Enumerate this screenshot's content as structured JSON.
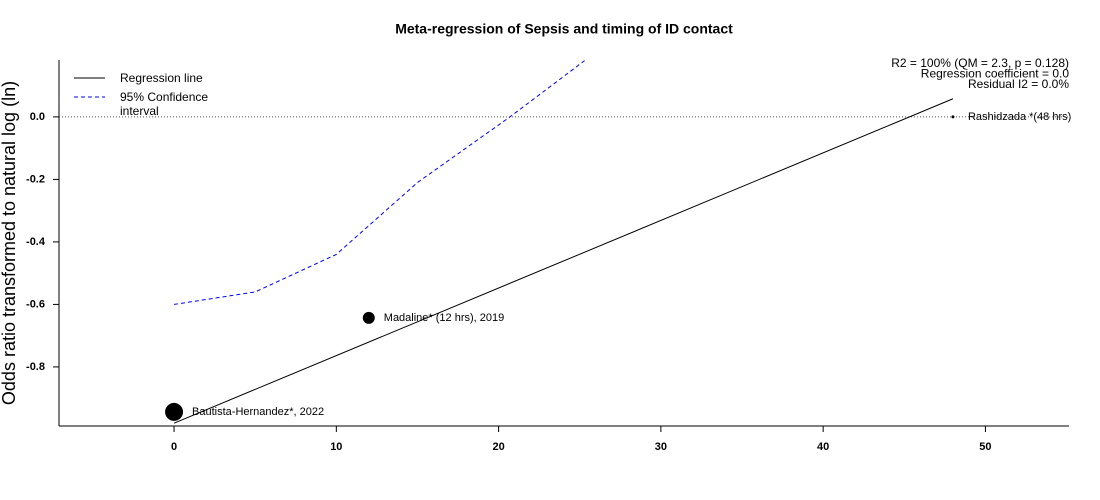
{
  "chart_data": {
    "type": "scatter",
    "title": "Meta-regression of  Sepsis and timing of ID contact",
    "y_label": "Odds ratio transformed to natural log (ln)",
    "xlim": [
      -7.09,
      55.15
    ],
    "ylim": [
      -0.989,
      0.182
    ],
    "xticks": [
      0,
      10,
      20,
      30,
      40,
      50
    ],
    "yticks": [
      {
        "value": 0,
        "label": "0.0"
      },
      -0.2,
      -0.4,
      -0.6,
      -0.8
    ],
    "reference_line": 0,
    "points": {
      "color": "#000000",
      "labels": [
        "Bautista-Hernandez*, 2022",
        "Madaline* (12 hrs), 2019",
        "Rashidzada *(48 hrs)"
      ],
      "x": [
        0,
        12,
        48
      ],
      "y": [
        -0.944,
        -0.643,
        0
      ],
      "sizes": [
        81,
        36,
        2.25
      ]
    },
    "series": [
      {
        "name": "Regression line",
        "color": "#000000",
        "dash": false,
        "x": [
          0,
          48
        ],
        "values": [
          -0.98,
          0.058
        ]
      },
      {
        "name": "95% Confidence interval",
        "color": "#0000ff",
        "dash": true,
        "x": [
          0,
          5,
          10,
          15,
          20.7,
          25.3
        ],
        "values": [
          -0.6,
          -0.56,
          -0.44,
          -0.21,
          0,
          0.18
        ]
      }
    ],
    "annotations": [
      "R2 = 100% (QM = 2.3, p = 0.128)",
      "Regression coefficient = 0.0",
      "Residual I2 = 0.0%"
    ]
  }
}
